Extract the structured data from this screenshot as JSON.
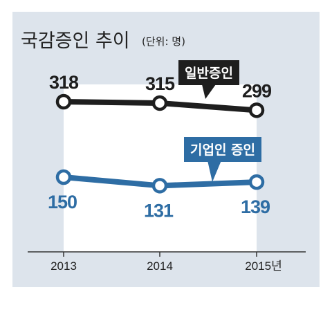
{
  "chart_data": {
    "type": "line",
    "title": "국감증인 추이",
    "subtitle": "(단위: 명)",
    "categories": [
      "2013",
      "2014",
      "2015년"
    ],
    "series": [
      {
        "name": "일반증인",
        "values": [
          318,
          315,
          299
        ],
        "color": "#1e1e1e"
      },
      {
        "name": "기업인 증인",
        "values": [
          150,
          131,
          139
        ],
        "color": "#2e6da4"
      }
    ],
    "legend_placement": "callouts near series",
    "grid": false
  },
  "colors": {
    "background": "#dde4ec",
    "accent_blue": "#2e6da4",
    "dark": "#1e1e1e"
  }
}
